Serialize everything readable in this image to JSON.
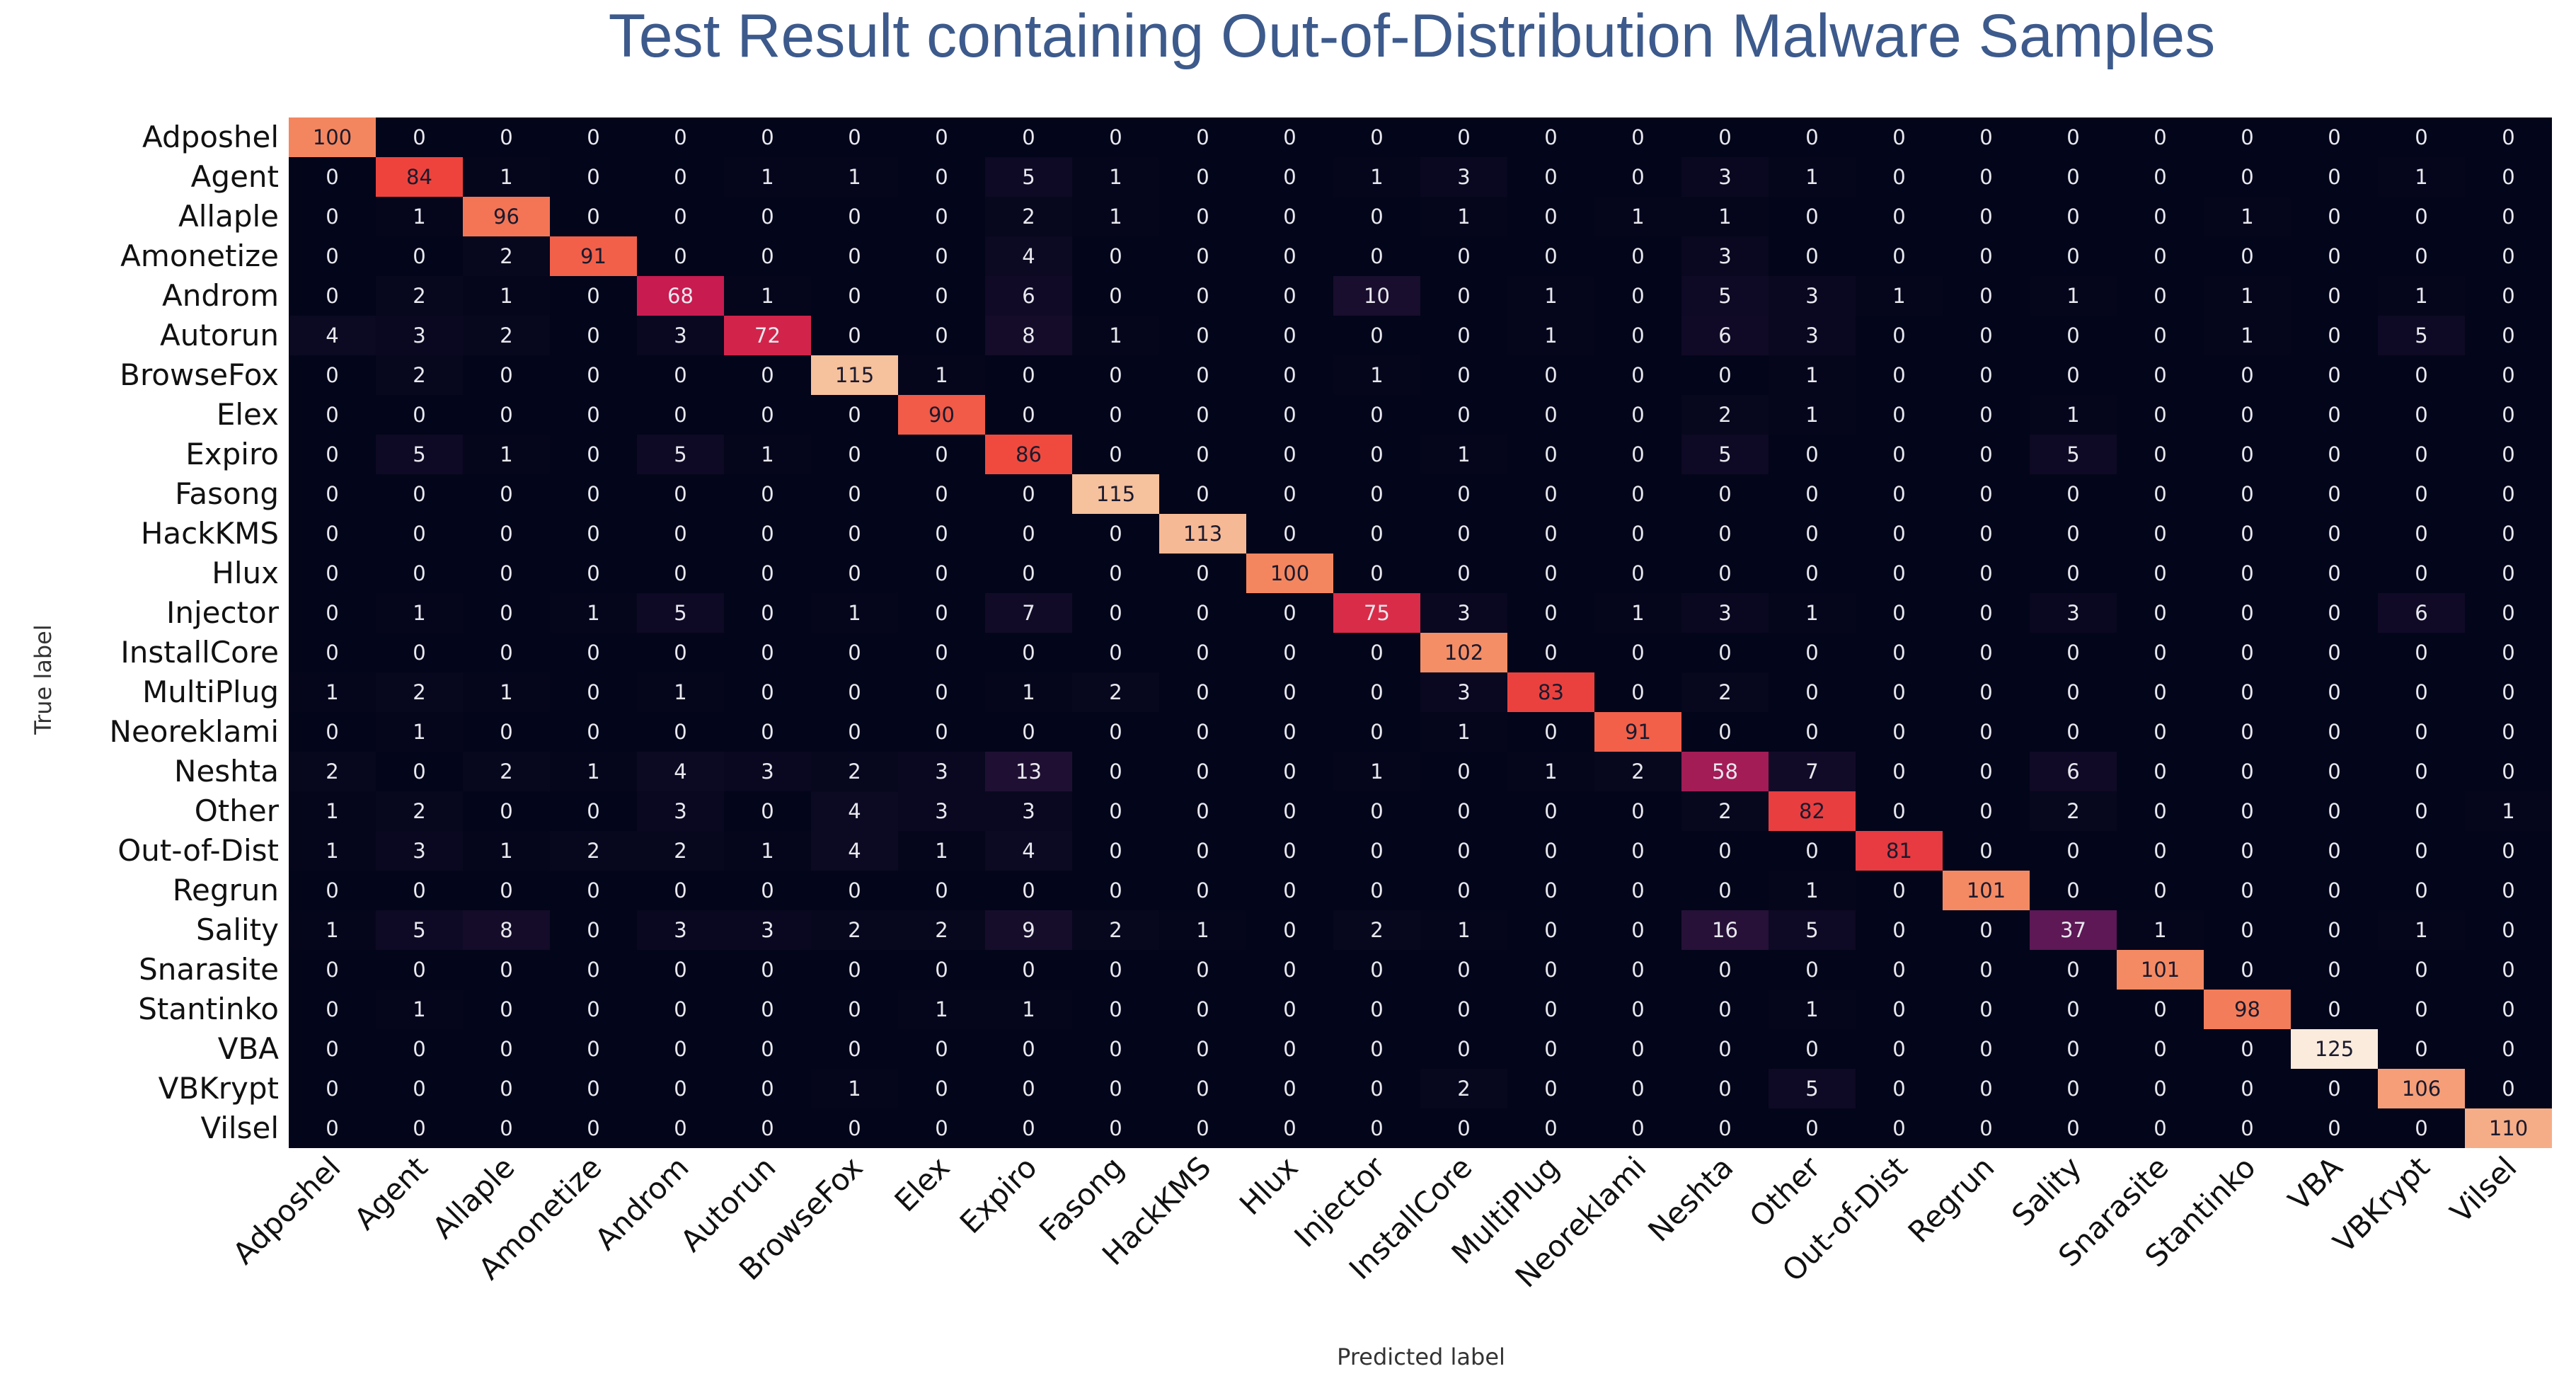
{
  "chart_data": {
    "type": "heatmap",
    "title": "Test Result containing Out-of-Distribution Malware Samples",
    "xlabel": "Predicted label",
    "ylabel": "True label",
    "colors": {
      "title": "#3d5a8c",
      "background": "#03051a",
      "text_dark": "#1a1a2e",
      "text_light": "#e8e8ee"
    },
    "categories": [
      "Adposhel",
      "Agent",
      "Allaple",
      "Amonetize",
      "Androm",
      "Autorun",
      "BrowseFox",
      "Elex",
      "Expiro",
      "Fasong",
      "HackKMS",
      "Hlux",
      "Injector",
      "InstallCore",
      "MultiPlug",
      "Neoreklami",
      "Neshta",
      "Other",
      "Out-of-Dist",
      "Regrun",
      "Sality",
      "Snarasite",
      "Stantinko",
      "VBA",
      "VBKrypt",
      "Vilsel"
    ],
    "matrix": [
      [
        100,
        0,
        0,
        0,
        0,
        0,
        0,
        0,
        0,
        0,
        0,
        0,
        0,
        0,
        0,
        0,
        0,
        0,
        0,
        0,
        0,
        0,
        0,
        0,
        0,
        0
      ],
      [
        0,
        84,
        1,
        0,
        0,
        1,
        1,
        0,
        5,
        1,
        0,
        0,
        1,
        3,
        0,
        0,
        3,
        1,
        0,
        0,
        0,
        0,
        0,
        0,
        1,
        0
      ],
      [
        0,
        1,
        96,
        0,
        0,
        0,
        0,
        0,
        2,
        1,
        0,
        0,
        0,
        1,
        0,
        1,
        1,
        0,
        0,
        0,
        0,
        0,
        1,
        0,
        0,
        0
      ],
      [
        0,
        0,
        2,
        91,
        0,
        0,
        0,
        0,
        4,
        0,
        0,
        0,
        0,
        0,
        0,
        0,
        3,
        0,
        0,
        0,
        0,
        0,
        0,
        0,
        0,
        0
      ],
      [
        0,
        2,
        1,
        0,
        68,
        1,
        0,
        0,
        6,
        0,
        0,
        0,
        10,
        0,
        1,
        0,
        5,
        3,
        1,
        0,
        1,
        0,
        1,
        0,
        1,
        0
      ],
      [
        4,
        3,
        2,
        0,
        3,
        72,
        0,
        0,
        8,
        1,
        0,
        0,
        0,
        0,
        1,
        0,
        6,
        3,
        0,
        0,
        0,
        0,
        1,
        0,
        5,
        0
      ],
      [
        0,
        2,
        0,
        0,
        0,
        0,
        115,
        1,
        0,
        0,
        0,
        0,
        1,
        0,
        0,
        0,
        0,
        1,
        0,
        0,
        0,
        0,
        0,
        0,
        0,
        0
      ],
      [
        0,
        0,
        0,
        0,
        0,
        0,
        0,
        90,
        0,
        0,
        0,
        0,
        0,
        0,
        0,
        0,
        2,
        1,
        0,
        0,
        1,
        0,
        0,
        0,
        0,
        0
      ],
      [
        0,
        5,
        1,
        0,
        5,
        1,
        0,
        0,
        86,
        0,
        0,
        0,
        0,
        1,
        0,
        0,
        5,
        0,
        0,
        0,
        5,
        0,
        0,
        0,
        0,
        0
      ],
      [
        0,
        0,
        0,
        0,
        0,
        0,
        0,
        0,
        0,
        115,
        0,
        0,
        0,
        0,
        0,
        0,
        0,
        0,
        0,
        0,
        0,
        0,
        0,
        0,
        0,
        0
      ],
      [
        0,
        0,
        0,
        0,
        0,
        0,
        0,
        0,
        0,
        0,
        113,
        0,
        0,
        0,
        0,
        0,
        0,
        0,
        0,
        0,
        0,
        0,
        0,
        0,
        0,
        0
      ],
      [
        0,
        0,
        0,
        0,
        0,
        0,
        0,
        0,
        0,
        0,
        0,
        100,
        0,
        0,
        0,
        0,
        0,
        0,
        0,
        0,
        0,
        0,
        0,
        0,
        0,
        0
      ],
      [
        0,
        1,
        0,
        1,
        5,
        0,
        1,
        0,
        7,
        0,
        0,
        0,
        75,
        3,
        0,
        1,
        3,
        1,
        0,
        0,
        3,
        0,
        0,
        0,
        6,
        0
      ],
      [
        0,
        0,
        0,
        0,
        0,
        0,
        0,
        0,
        0,
        0,
        0,
        0,
        0,
        102,
        0,
        0,
        0,
        0,
        0,
        0,
        0,
        0,
        0,
        0,
        0,
        0
      ],
      [
        1,
        2,
        1,
        0,
        1,
        0,
        0,
        0,
        1,
        2,
        0,
        0,
        0,
        3,
        83,
        0,
        2,
        0,
        0,
        0,
        0,
        0,
        0,
        0,
        0,
        0
      ],
      [
        0,
        1,
        0,
        0,
        0,
        0,
        0,
        0,
        0,
        0,
        0,
        0,
        0,
        1,
        0,
        91,
        0,
        0,
        0,
        0,
        0,
        0,
        0,
        0,
        0,
        0
      ],
      [
        2,
        0,
        2,
        1,
        4,
        3,
        2,
        3,
        13,
        0,
        0,
        0,
        1,
        0,
        1,
        2,
        58,
        7,
        0,
        0,
        6,
        0,
        0,
        0,
        0,
        0
      ],
      [
        1,
        2,
        0,
        0,
        3,
        0,
        4,
        3,
        3,
        0,
        0,
        0,
        0,
        0,
        0,
        0,
        2,
        82,
        0,
        0,
        2,
        0,
        0,
        0,
        0,
        1
      ],
      [
        1,
        3,
        1,
        2,
        2,
        1,
        4,
        1,
        4,
        0,
        0,
        0,
        0,
        0,
        0,
        0,
        0,
        0,
        81,
        0,
        0,
        0,
        0,
        0,
        0,
        0
      ],
      [
        0,
        0,
        0,
        0,
        0,
        0,
        0,
        0,
        0,
        0,
        0,
        0,
        0,
        0,
        0,
        0,
        0,
        1,
        0,
        101,
        0,
        0,
        0,
        0,
        0,
        0
      ],
      [
        1,
        5,
        8,
        0,
        3,
        3,
        2,
        2,
        9,
        2,
        1,
        0,
        2,
        1,
        0,
        0,
        16,
        5,
        0,
        0,
        37,
        1,
        0,
        0,
        1,
        0
      ],
      [
        0,
        0,
        0,
        0,
        0,
        0,
        0,
        0,
        0,
        0,
        0,
        0,
        0,
        0,
        0,
        0,
        0,
        0,
        0,
        0,
        0,
        101,
        0,
        0,
        0,
        0
      ],
      [
        0,
        1,
        0,
        0,
        0,
        0,
        0,
        1,
        1,
        0,
        0,
        0,
        0,
        0,
        0,
        0,
        0,
        1,
        0,
        0,
        0,
        0,
        98,
        0,
        0,
        0
      ],
      [
        0,
        0,
        0,
        0,
        0,
        0,
        0,
        0,
        0,
        0,
        0,
        0,
        0,
        0,
        0,
        0,
        0,
        0,
        0,
        0,
        0,
        0,
        0,
        125,
        0,
        0
      ],
      [
        0,
        0,
        0,
        0,
        0,
        0,
        1,
        0,
        0,
        0,
        0,
        0,
        0,
        2,
        0,
        0,
        0,
        5,
        0,
        0,
        0,
        0,
        0,
        0,
        106,
        0
      ],
      [
        0,
        0,
        0,
        0,
        0,
        0,
        0,
        0,
        0,
        0,
        0,
        0,
        0,
        0,
        0,
        0,
        0,
        0,
        0,
        0,
        0,
        0,
        0,
        0,
        0,
        110
      ]
    ],
    "value_range": [
      0,
      125
    ],
    "colormap": "rocket",
    "grid": false,
    "legend": "none"
  }
}
